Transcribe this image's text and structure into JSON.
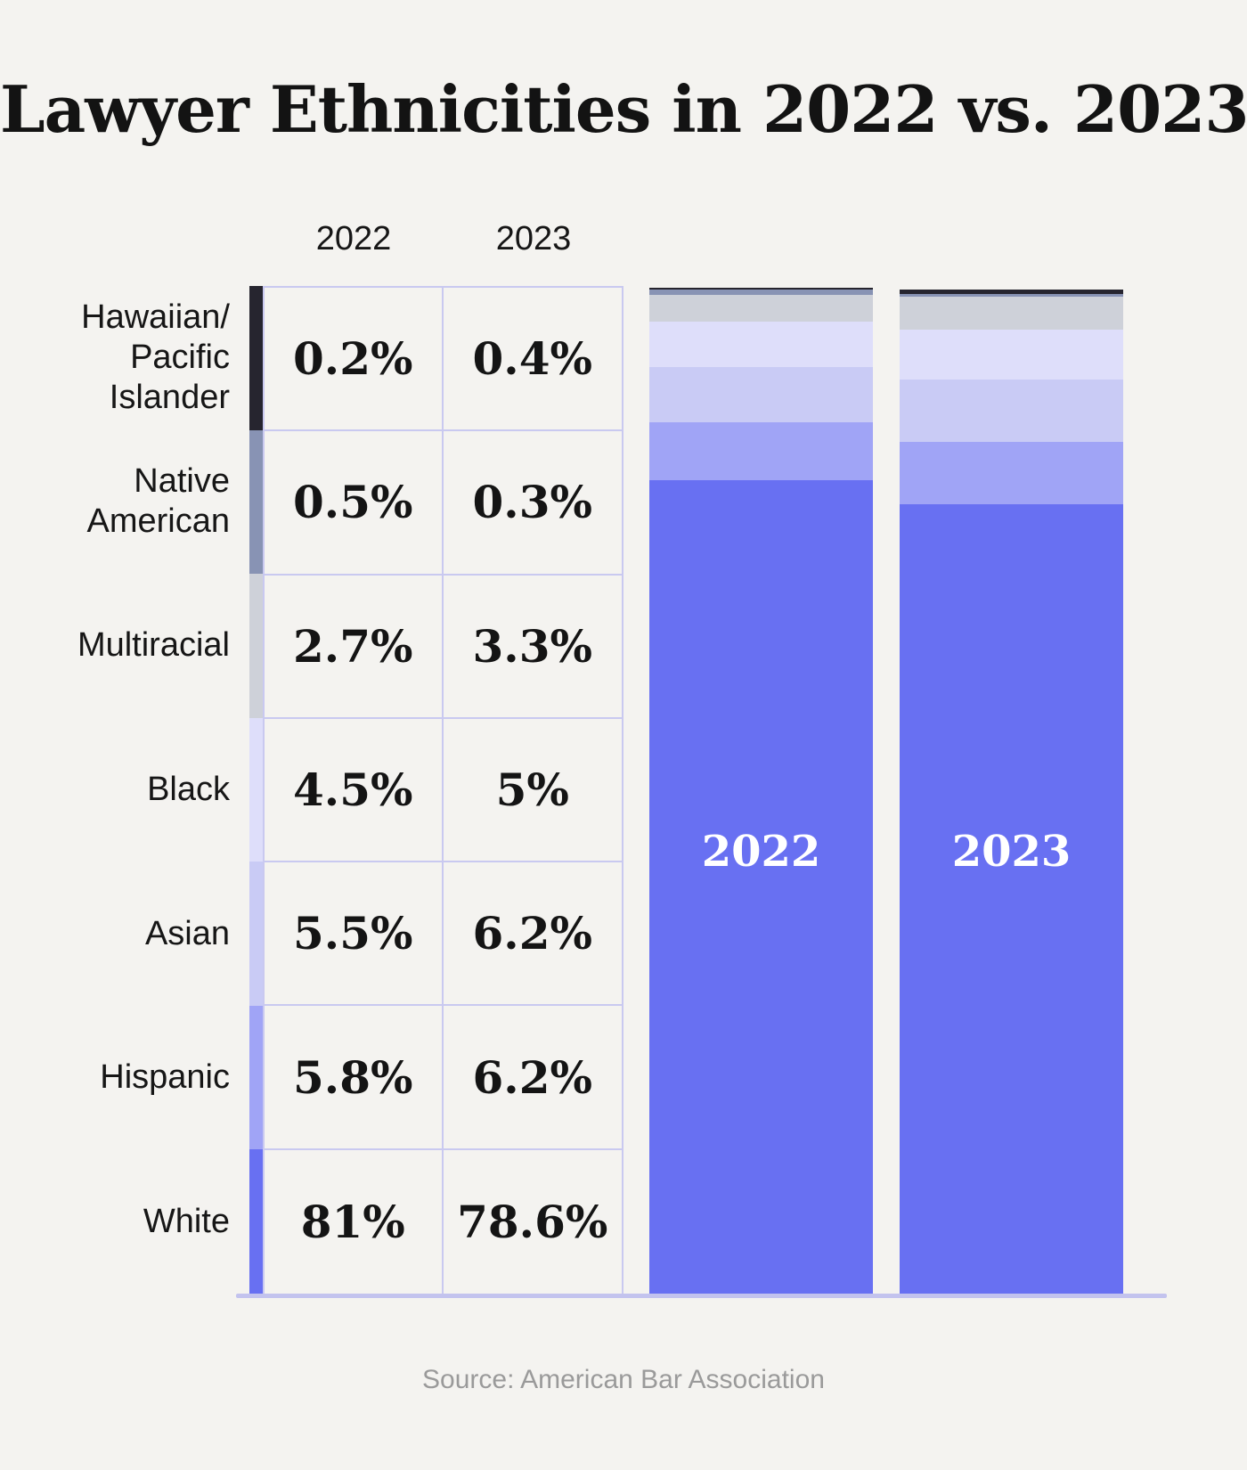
{
  "title": "Lawyer Ethnicities in 2022 vs. 2023",
  "source": "Source: American Bar Association",
  "colors": {
    "background": "#f4f3f0",
    "table_border": "#c9c9f0",
    "baseline": "#c3c3ee",
    "bar_label_text": "#ffffff",
    "source_text": "#9a9a9a",
    "text": "#161616"
  },
  "chart_data": {
    "type": "bar",
    "subtype": "100-percent-stacked-comparison",
    "title": "Lawyer Ethnicities in 2022 vs. 2023",
    "columns": [
      "2022",
      "2023"
    ],
    "grid": false,
    "legend_position": "left-table",
    "categories": [
      "Hawaiian/Pacific Islander",
      "Native American",
      "Multiracial",
      "Black",
      "Asian",
      "Hispanic",
      "White"
    ],
    "rows": [
      {
        "label_lines": [
          "Hawaiian/",
          "Pacific",
          "Islander"
        ],
        "display": [
          "0.2%",
          "0.4%"
        ],
        "values": [
          0.2,
          0.4
        ],
        "color": "#26252f"
      },
      {
        "label_lines": [
          "Native",
          "American"
        ],
        "display": [
          "0.5%",
          "0.3%"
        ],
        "values": [
          0.5,
          0.3
        ],
        "color": "#8893b4"
      },
      {
        "label_lines": [
          "Multiracial"
        ],
        "display": [
          "2.7%",
          "3.3%"
        ],
        "values": [
          2.7,
          3.3
        ],
        "color": "#ced1d9"
      },
      {
        "label_lines": [
          "Black"
        ],
        "display": [
          "4.5%",
          "5%"
        ],
        "values": [
          4.5,
          5.0
        ],
        "color": "#dedefa"
      },
      {
        "label_lines": [
          "Asian"
        ],
        "display": [
          "5.5%",
          "6.2%"
        ],
        "values": [
          5.5,
          6.2
        ],
        "color": "#c9cbf5"
      },
      {
        "label_lines": [
          "Hispanic"
        ],
        "display": [
          "5.8%",
          "6.2%"
        ],
        "values": [
          5.8,
          6.2
        ],
        "color": "#a0a4f6"
      },
      {
        "label_lines": [
          "White"
        ],
        "display": [
          "81%",
          "78.6%"
        ],
        "values": [
          81.0,
          78.6
        ],
        "color": "#6870f2"
      }
    ],
    "bars": [
      {
        "label": "2022"
      },
      {
        "label": "2023"
      }
    ]
  }
}
